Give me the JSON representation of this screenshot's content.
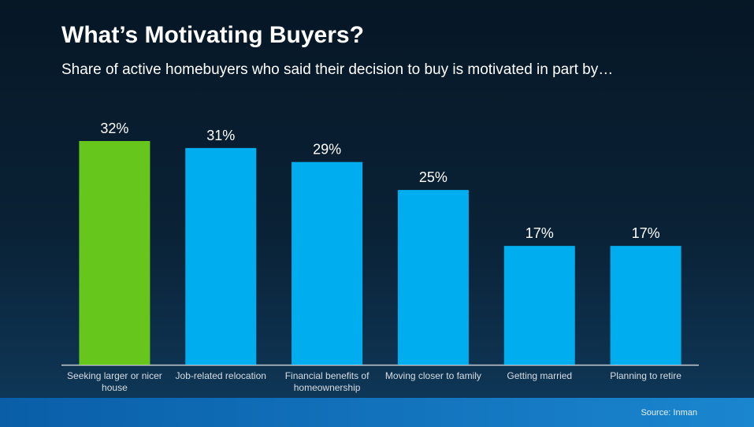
{
  "chart_data": {
    "type": "bar",
    "title": "What’s Motivating Buyers?",
    "subtitle": "Share of active homebuyers who said their decision to buy is motivated in part by…",
    "categories": [
      "Seeking larger or nicer house",
      "Job-related relocation",
      "Financial benefits of homeownership",
      "Moving closer to family",
      "Getting married",
      "Planning to retire"
    ],
    "values": [
      32,
      31,
      29,
      25,
      17,
      17
    ],
    "value_labels": [
      "32%",
      "31%",
      "29%",
      "25%",
      "17%",
      "17%"
    ],
    "colors": [
      "#66c61c",
      "#00aeef",
      "#00aeef",
      "#00aeef",
      "#00aeef",
      "#00aeef"
    ],
    "source": "Source: Inman"
  }
}
